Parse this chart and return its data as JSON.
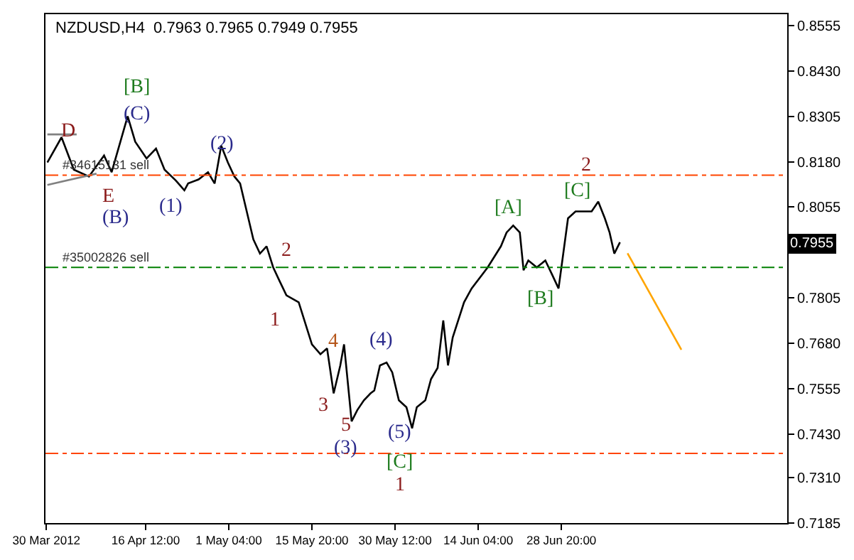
{
  "chart_data": {
    "type": "line",
    "title": "NZDUSD,H4  0.7963 0.7965 0.7949 0.7955",
    "xlim": [
      "2012-03-29T20:00",
      "2012-08-07T16:00"
    ],
    "xticks": [
      {
        "value": "2012-03-30",
        "label": "30 Mar 2012"
      },
      {
        "value": "2012-04-16T12:00",
        "label": "16 Apr 12:00"
      },
      {
        "value": "2012-05-01T04:00",
        "label": "1 May 04:00"
      },
      {
        "value": "2012-05-15T20:00",
        "label": "15 May 20:00"
      },
      {
        "value": "2012-05-30T12:00",
        "label": "30 May 12:00"
      },
      {
        "value": "2012-06-14T04:00",
        "label": "14 Jun 04:00"
      },
      {
        "value": "2012-06-28T20:00",
        "label": "28 Jun 20:00"
      }
    ],
    "ylim": [
      0.7185,
      0.8586
    ],
    "yticks": [
      0.8555,
      {
        "value": 0.843,
        "label": "0.8430"
      },
      0.8305,
      {
        "value": 0.818,
        "label": "0.8180"
      },
      0.8055,
      0.7805,
      {
        "value": 0.768,
        "label": "0.7680"
      },
      0.7555,
      {
        "value": 0.743,
        "label": "0.7430"
      },
      {
        "value": 0.731,
        "label": "0.7310"
      },
      0.7185
    ],
    "marker": "none",
    "line_style": "solid",
    "series": [
      {
        "color": "#000000",
        "x": [
          "2012-03-30T04:00",
          "2012-04-01T16:00",
          "2012-04-03T20:00",
          "2012-04-06T12:00",
          "2012-04-09T04:00",
          "2012-04-10T12:00",
          "2012-04-13T08:00",
          "2012-04-14T16:00",
          "2012-04-16T16:00",
          "2012-04-18T08:00",
          "2012-04-19T20:00",
          "2012-04-21T20:00",
          "2012-04-23T08:00",
          "2012-04-24T00:00",
          "2012-04-25T20:00",
          "2012-04-27T12:00",
          "2012-04-28T16:00",
          "2012-04-29T20:00",
          "2012-05-01T00:00",
          "2012-05-02T04:00",
          "2012-05-03T04:00",
          "2012-05-04T08:00",
          "2012-05-05T12:00",
          "2012-05-06T16:00",
          "2012-05-07T20:00",
          "2012-05-09T00:00",
          "2012-05-10T04:00",
          "2012-05-11T08:00",
          "2012-05-13T12:00",
          "2012-05-15T20:00",
          "2012-05-17T08:00",
          "2012-05-18T12:00",
          "2012-05-19T16:00",
          "2012-05-20T20:00",
          "2012-05-21T12:00",
          "2012-05-22T20:00",
          "2012-05-23T20:00",
          "2012-05-25T00:00",
          "2012-05-26T04:00",
          "2012-05-26T20:00",
          "2012-05-27T20:00",
          "2012-05-29T00:00",
          "2012-05-30T00:00",
          "2012-05-31T04:00",
          "2012-06-01T12:00",
          "2012-06-02T12:00",
          "2012-06-03T08:00",
          "2012-06-04T20:00",
          "2012-06-05T20:00",
          "2012-06-07T00:00",
          "2012-06-08T00:00",
          "2012-06-08T20:00",
          "2012-06-09T16:00",
          "2012-06-11T16:00",
          "2012-06-13T00:00",
          "2012-06-15T20:00",
          "2012-06-18T04:00",
          "2012-06-19T04:00",
          "2012-06-20T08:00",
          "2012-06-21T12:00",
          "2012-06-22T04:00",
          "2012-06-23T00:00",
          "2012-06-24T12:00",
          "2012-06-26T00:00",
          "2012-06-27T04:00",
          "2012-06-28T08:00",
          "2012-06-29T00:00",
          "2012-06-30T00:00",
          "2012-07-01T08:00",
          "2012-07-03T00:00",
          "2012-07-04T04:00",
          "2012-07-05T08:00",
          "2012-07-06T12:00",
          "2012-07-07T08:00",
          "2012-07-08T04:00",
          "2012-07-09T04:00"
        ],
        "values": [
          0.8178,
          0.8247,
          0.8158,
          0.8139,
          0.8197,
          0.8151,
          0.8305,
          0.8235,
          0.8189,
          0.8216,
          0.8158,
          0.8128,
          0.8101,
          0.812,
          0.8131,
          0.8151,
          0.812,
          0.8224,
          0.8178,
          0.8139,
          0.812,
          0.8043,
          0.7966,
          0.7927,
          0.7947,
          0.7889,
          0.785,
          0.7812,
          0.7793,
          0.7677,
          0.765,
          0.7666,
          0.7542,
          0.7619,
          0.7677,
          0.7465,
          0.7496,
          0.7523,
          0.7542,
          0.755,
          0.7619,
          0.7627,
          0.76,
          0.7523,
          0.7504,
          0.7446,
          0.7504,
          0.7523,
          0.7581,
          0.7612,
          0.7743,
          0.7619,
          0.7696,
          0.7793,
          0.7831,
          0.7889,
          0.7947,
          0.7985,
          0.8004,
          0.7985,
          0.7881,
          0.7908,
          0.7889,
          0.7908,
          0.787,
          0.7831,
          0.7908,
          0.8024,
          0.8043,
          0.8043,
          0.8043,
          0.807,
          0.8024,
          0.7985,
          0.7927,
          0.7958
        ]
      },
      {
        "color": "#ffa500",
        "x": [
          "2012-07-10T12:00",
          "2012-07-20T00:00"
        ],
        "values": [
          0.7928,
          0.7662
        ]
      },
      {
        "color": "#808080",
        "x": [
          "2012-03-30T04:00",
          "2012-04-04T08:00"
        ],
        "values": [
          0.8255,
          0.8255
        ]
      },
      {
        "color": "#808080",
        "x": [
          "2012-03-30T04:00",
          "2012-04-07T20:00"
        ],
        "values": [
          0.8116,
          0.8147
        ]
      }
    ],
    "ref_lines": [
      {
        "axis": "y",
        "value": 0.8143,
        "label": "#34615131 sell",
        "color": "#ff4500",
        "line_style": "dashdot"
      },
      {
        "axis": "y",
        "value": 0.7889,
        "label": "#35002826 sell",
        "color": "#008000",
        "line_style": "dashdot"
      },
      {
        "axis": "y",
        "value": 0.7377,
        "color": "#ff4500",
        "line_style": "dashdot"
      }
    ],
    "annotations": [
      "D",
      "[B]",
      "(C)",
      "(2)",
      "E",
      "(B)",
      "(1)",
      "2",
      "1",
      "4",
      "3",
      "5",
      "(3)",
      "(4)",
      "(5)",
      "[C]",
      "1",
      "[A]",
      "2",
      "[C]",
      "[B]",
      "0.7955"
    ]
  }
}
